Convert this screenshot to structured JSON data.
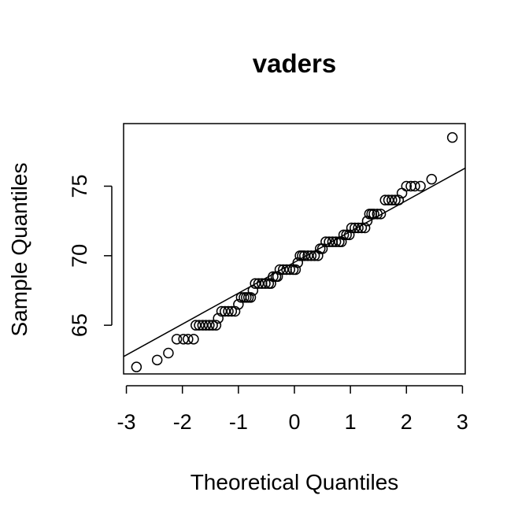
{
  "chart_data": {
    "type": "scatter",
    "title": "vaders",
    "xlabel": "Theoretical Quantiles",
    "ylabel": "Sample Quantiles",
    "xlim": [
      -3.05,
      3.05
    ],
    "ylim": [
      61.5,
      79.5
    ],
    "x_ticks": [
      -3,
      -2,
      -1,
      0,
      1,
      2,
      3
    ],
    "x_tick_labels": [
      "-3",
      "-2",
      "-1",
      "0",
      "1",
      "2",
      "3"
    ],
    "y_ticks": [
      65,
      70,
      75
    ],
    "y_tick_labels": [
      "65",
      "70",
      "75"
    ],
    "grid": false,
    "legend": "none",
    "qq_line": {
      "x": [
        -3.05,
        3.05
      ],
      "y": [
        62.75,
        76.3
      ]
    },
    "points": {
      "x": [
        -2.82,
        -2.45,
        -2.25,
        -2.1,
        -1.98,
        -1.9,
        -1.8,
        -1.76,
        -1.7,
        -1.64,
        -1.58,
        -1.52,
        -1.46,
        -1.4,
        -1.36,
        -1.3,
        -1.24,
        -1.18,
        -1.12,
        -1.06,
        -1.0,
        -0.95,
        -0.9,
        -0.86,
        -0.82,
        -0.78,
        -0.74,
        -0.7,
        -0.64,
        -0.58,
        -0.52,
        -0.46,
        -0.42,
        -0.38,
        -0.33,
        -0.3,
        -0.26,
        -0.2,
        -0.14,
        -0.08,
        -0.02,
        0.02,
        0.06,
        0.1,
        0.14,
        0.18,
        0.24,
        0.3,
        0.36,
        0.42,
        0.46,
        0.5,
        0.56,
        0.62,
        0.68,
        0.74,
        0.8,
        0.84,
        0.88,
        0.93,
        0.98,
        1.02,
        1.08,
        1.14,
        1.2,
        1.26,
        1.3,
        1.34,
        1.38,
        1.42,
        1.48,
        1.54,
        1.62,
        1.68,
        1.74,
        1.8,
        1.86,
        1.92,
        2.0,
        2.08,
        2.15,
        2.25,
        2.45,
        2.82
      ],
      "y": [
        62.0,
        62.5,
        63.0,
        64.0,
        64.0,
        64.0,
        64.0,
        65.0,
        65.0,
        65.0,
        65.0,
        65.0,
        65.0,
        65.0,
        65.5,
        66.0,
        66.0,
        66.0,
        66.0,
        66.0,
        66.5,
        67.0,
        67.0,
        67.0,
        67.0,
        67.0,
        67.5,
        68.0,
        68.0,
        68.0,
        68.0,
        68.0,
        68.0,
        68.5,
        68.5,
        68.5,
        69.0,
        69.0,
        69.0,
        69.0,
        69.0,
        69.0,
        69.5,
        70.0,
        70.0,
        70.0,
        70.0,
        70.0,
        70.0,
        70.0,
        70.5,
        70.5,
        71.0,
        71.0,
        71.0,
        71.0,
        71.0,
        71.0,
        71.5,
        71.5,
        71.5,
        72.0,
        72.0,
        72.0,
        72.0,
        72.0,
        72.5,
        73.0,
        73.0,
        73.0,
        73.0,
        73.0,
        74.0,
        74.0,
        74.0,
        74.0,
        74.0,
        74.5,
        75.0,
        75.0,
        75.0,
        75.0,
        75.5,
        78.5
      ]
    },
    "colors": {
      "points": "#000000",
      "line": "#000000",
      "background": "#ffffff"
    }
  }
}
